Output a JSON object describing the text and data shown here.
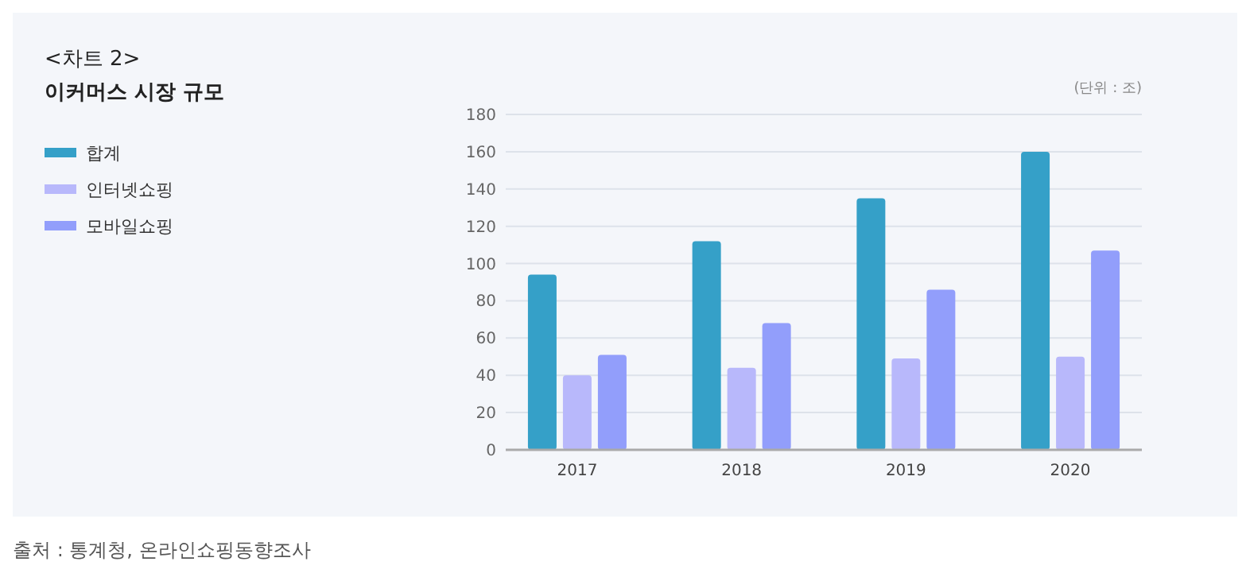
{
  "chart_data": {
    "type": "bar",
    "title": "<차트 2>",
    "subtitle": "이커머스 시장 규모",
    "ylabel": "(단위 : 조)",
    "annotations": [
      "출처 : 통계청, 온라인쇼핑동향조사"
    ],
    "categories": [
      "2017",
      "2018",
      "2019",
      "2020"
    ],
    "series": [
      {
        "name": "합계",
        "color": "#35a0c8",
        "values": [
          94,
          112,
          135,
          160
        ]
      },
      {
        "name": "인터넷쇼핑",
        "color": "#b8b8fb",
        "values": [
          40,
          44,
          49,
          50
        ]
      },
      {
        "name": "모바일쇼핑",
        "color": "#929efb",
        "values": [
          51,
          68,
          86,
          107
        ]
      }
    ],
    "ylim": [
      0,
      180
    ],
    "yticks": [
      0,
      20,
      40,
      60,
      80,
      100,
      120,
      140,
      160,
      180
    ],
    "grid": "y",
    "legend": "left"
  }
}
